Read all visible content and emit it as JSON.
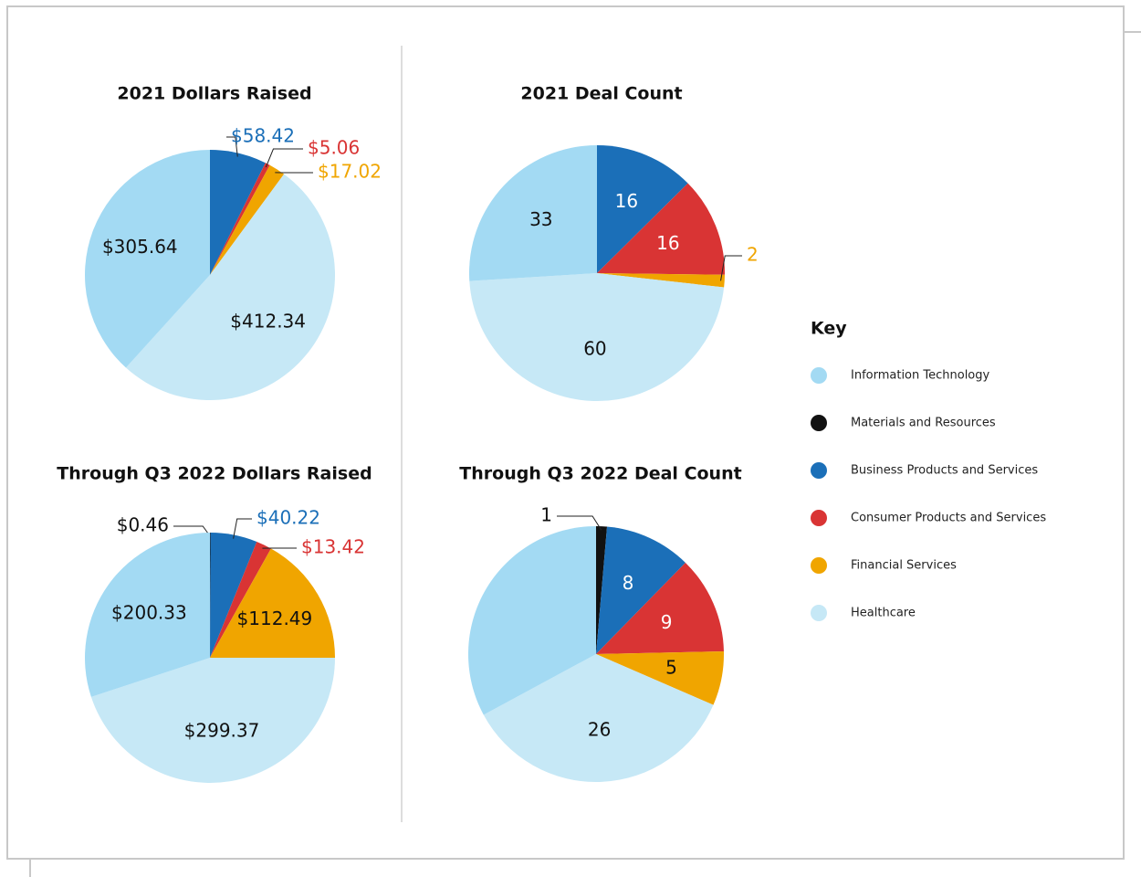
{
  "chart_data": [
    {
      "type": "pie",
      "title": "2021 Dollars Raised",
      "values": [
        58.42,
        5.06,
        17.02,
        412.34,
        305.64
      ],
      "value_labels": [
        "$58.42",
        "$5.06",
        "$17.02",
        "$412.34",
        "$305.64"
      ],
      "colors": [
        "#1b6fb8",
        "#d93434",
        "#f0a500",
        "#c6e8f6",
        "#a3daf3"
      ]
    },
    {
      "type": "pie",
      "title": "2021 Deal Count",
      "values": [
        16,
        16,
        2,
        60,
        33
      ],
      "colors": [
        "#1b6fb8",
        "#d93434",
        "#f0a500",
        "#c6e8f6",
        "#a3daf3"
      ]
    },
    {
      "type": "pie",
      "title": "Through Q3 2022 Dollars Raised",
      "values": [
        0.46,
        40.22,
        13.42,
        112.49,
        299.37,
        200.33
      ],
      "value_labels": [
        "$0.46",
        "$40.22",
        "$13.42",
        "$112.49",
        "$299.37",
        "$200.33"
      ],
      "colors": [
        "#111111",
        "#1b6fb8",
        "#d93434",
        "#f0a500",
        "#c6e8f6",
        "#a3daf3"
      ]
    },
    {
      "type": "pie",
      "title": "Through Q3 2022 Deal Count",
      "values": [
        1,
        8,
        9,
        5,
        26,
        24
      ],
      "value_labels": [
        "1",
        "8",
        "9",
        "5",
        "26",
        null
      ],
      "colors": [
        "#111111",
        "#1b6fb8",
        "#d93434",
        "#f0a500",
        "#c6e8f6",
        "#a3daf3"
      ]
    }
  ],
  "legend": {
    "title": "Key",
    "items": [
      {
        "name": "Information Technology",
        "color": "#a3daf3"
      },
      {
        "name": "Materials and Resources",
        "color": "#111111"
      },
      {
        "name": "Business Products and Services",
        "color": "#1b6fb8"
      },
      {
        "name": "Consumer Products and Services",
        "color": "#d93434"
      },
      {
        "name": "Financial Services",
        "color": "#f0a500"
      },
      {
        "name": "Healthcare",
        "color": "#c6e8f6"
      }
    ]
  }
}
